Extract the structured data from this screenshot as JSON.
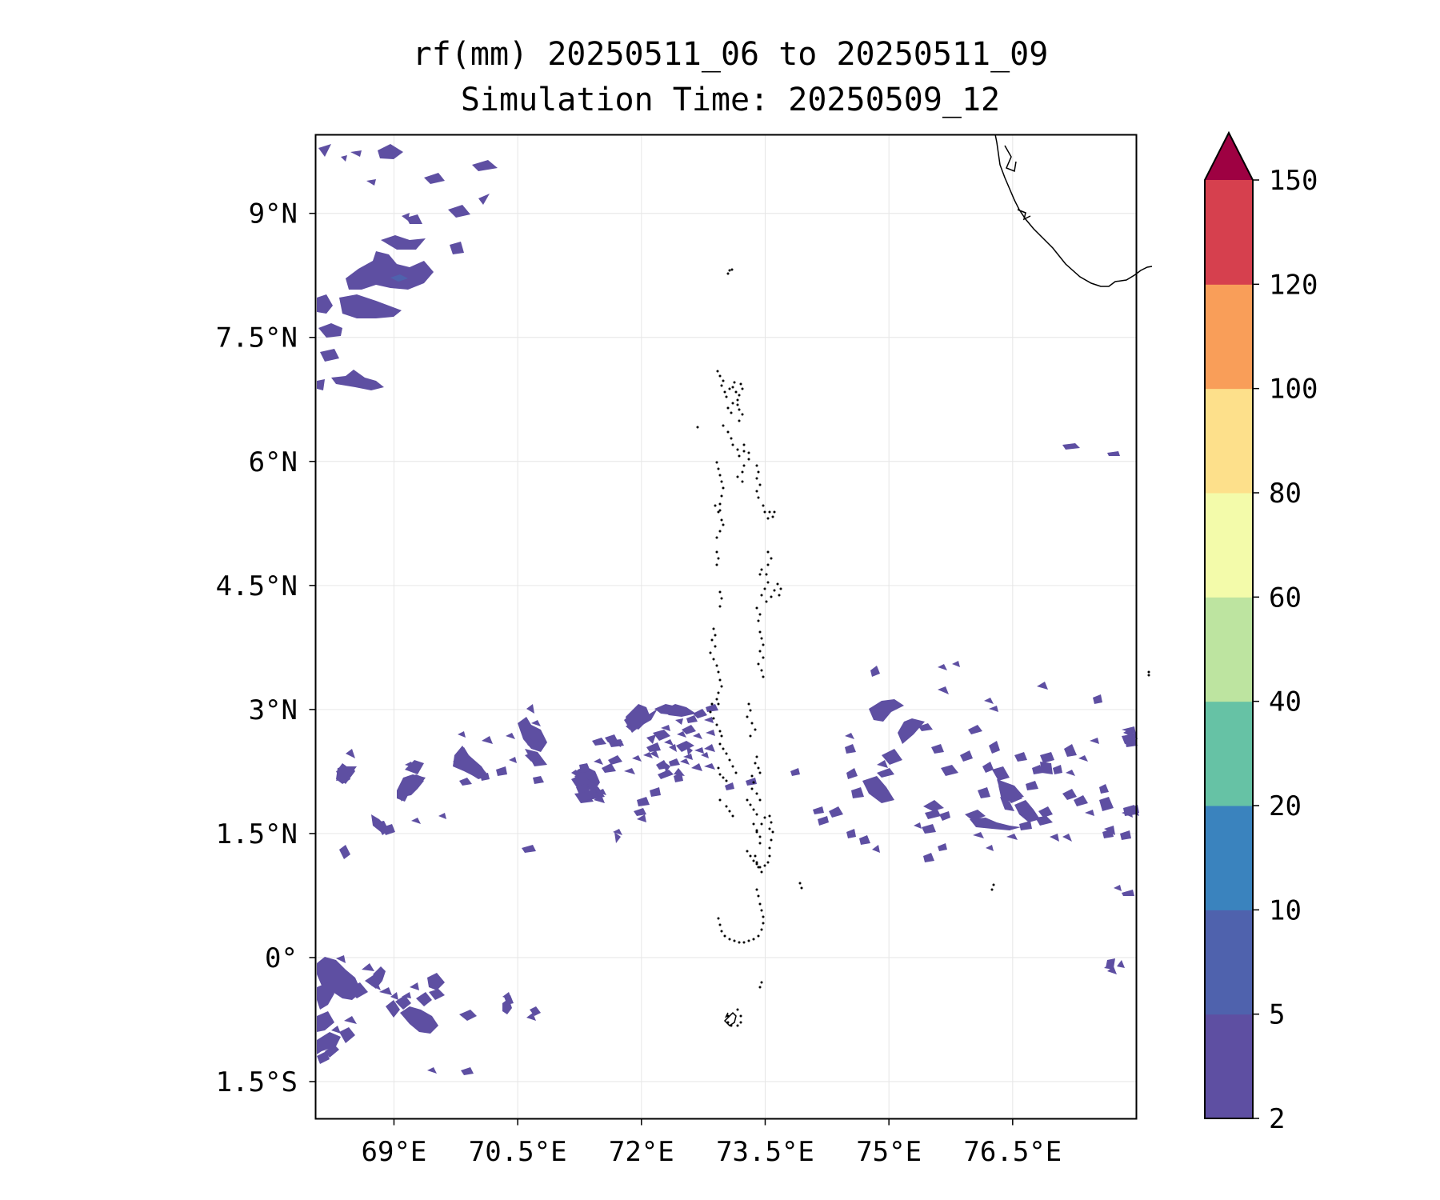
{
  "chart_data": {
    "type": "contour-map",
    "title_line1": "rf(mm) 20250511_06 to 20250511_09",
    "title_line2": "Simulation Time: 20250509_12",
    "xlabel": "",
    "ylabel": "",
    "xlim": [
      68.05,
      78.0
    ],
    "ylim": [
      -1.95,
      9.95
    ],
    "x_ticks": [
      69,
      70.5,
      72,
      73.5,
      75,
      76.5
    ],
    "x_tick_labels": [
      "69°E",
      "70.5°E",
      "72°E",
      "73.5°E",
      "75°E",
      "76.5°E"
    ],
    "y_ticks": [
      9,
      7.5,
      6,
      4.5,
      3,
      1.5,
      0,
      -1.5
    ],
    "y_tick_labels": [
      "9°N",
      "7.5°N",
      "6°N",
      "4.5°N",
      "3°N",
      "1.5°N",
      "0°",
      "1.5°S"
    ],
    "grid": true,
    "colorbar": {
      "levels": [
        2,
        5,
        10,
        20,
        40,
        60,
        80,
        100,
        120,
        150
      ],
      "labels": [
        "2",
        "5",
        "10",
        "20",
        "40",
        "60",
        "80",
        "100",
        "120",
        "150"
      ],
      "colors": [
        "#5e4fa2",
        "#4f62ad",
        "#3a83be",
        "#66c2a5",
        "#bde4a0",
        "#f3fbaa",
        "#fde08b",
        "#f99e59",
        "#d6404e",
        "#9e0142"
      ],
      "extend": "max"
    },
    "rain_areas": [
      {
        "region": "NW cluster",
        "lon_min": 68.1,
        "lon_max": 70.2,
        "lat_min": 6.8,
        "lat_max": 9.9,
        "category": "2-5 mm"
      },
      {
        "region": "equatorial band west",
        "lon_min": 68.1,
        "lon_max": 73.0,
        "lat_min": 1.3,
        "lat_max": 3.0,
        "category": "2-5 mm"
      },
      {
        "region": "equatorial band east",
        "lon_min": 74.5,
        "lon_max": 77.9,
        "lat_min": 1.2,
        "lat_max": 3.2,
        "category": "2-5 mm"
      },
      {
        "region": "SW cluster",
        "lon_min": 68.1,
        "lon_max": 70.0,
        "lat_min": -1.3,
        "lat_max": 0.0,
        "category": "2-5 mm"
      },
      {
        "region": "NW core",
        "lon_min": 69.0,
        "lon_max": 69.1,
        "lat_min": 8.3,
        "lat_max": 8.4,
        "category": "5-10 mm"
      }
    ]
  }
}
